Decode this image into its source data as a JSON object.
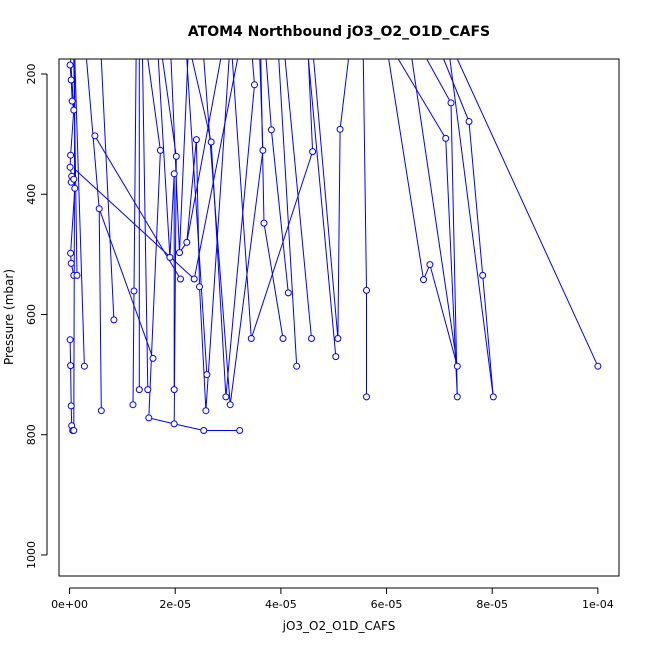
{
  "chart_data": {
    "type": "line",
    "title": "ATOM4 Northbound jO3_O2_O1D_CAFS",
    "xlabel": "jO3_O2_O1D_CAFS",
    "ylabel": "Pressure (mbar)",
    "xlim": [
      -2e-06,
      0.000104
    ],
    "ylim": [
      1035,
      175
    ],
    "y_reversed": true,
    "grid": false,
    "color": "#0000ff",
    "marker": "open-circle",
    "x_ticks": [
      0,
      2e-05,
      4e-05,
      6e-05,
      8e-05,
      0.0001
    ],
    "x_tick_labels": [
      "0e+00",
      "2e-05",
      "4e-05",
      "6e-05",
      "8e-05",
      "1e-04"
    ],
    "y_ticks": [
      200,
      400,
      600,
      800,
      1000
    ],
    "y_tick_labels": [
      "200",
      "400",
      "600",
      "800",
      "1000"
    ],
    "points": [
      [
        1e-07,
        185
      ],
      [
        3e-07,
        210
      ],
      [
        5e-07,
        245
      ],
      [
        8e-07,
        260
      ],
      [
        2e-07,
        335
      ],
      [
        1e-07,
        355
      ],
      [
        4e-07,
        370
      ],
      [
        3e-07,
        380
      ],
      [
        8e-07,
        375
      ],
      [
        1e-06,
        390
      ],
      [
        2e-07,
        498
      ],
      [
        3e-07,
        515
      ],
      [
        8e-07,
        535
      ],
      [
        1e-07,
        642
      ],
      [
        2e-07,
        685
      ],
      [
        3e-07,
        752
      ],
      [
        4e-07,
        785
      ],
      [
        6e-07,
        793
      ],
      [
        8e-07,
        793
      ],
      [
        1.4e-06,
        535
      ],
      [
        2.8e-06,
        686
      ],
      [
        4.8e-06,
        303
      ],
      [
        5.6e-06,
        424
      ],
      [
        6e-06,
        760
      ],
      [
        8.4e-06,
        609
      ],
      [
        1.22e-05,
        561
      ],
      [
        1.2e-05,
        750
      ],
      [
        1.32e-05,
        725
      ],
      [
        1.48e-05,
        725
      ],
      [
        1.5e-05,
        772
      ],
      [
        1.58e-05,
        673
      ],
      [
        1.72e-05,
        327
      ],
      [
        1.9e-05,
        505
      ],
      [
        1.98e-05,
        366
      ],
      [
        2.02e-05,
        337
      ],
      [
        1.98e-05,
        725
      ],
      [
        1.98e-05,
        782
      ],
      [
        2.08e-05,
        497
      ],
      [
        2.1e-05,
        541
      ],
      [
        2.22e-05,
        480
      ],
      [
        2.36e-05,
        541
      ],
      [
        2.4e-05,
        309
      ],
      [
        2.46e-05,
        554
      ],
      [
        2.54e-05,
        793
      ],
      [
        2.58e-05,
        760
      ],
      [
        2.6e-05,
        700
      ],
      [
        2.68e-05,
        313
      ],
      [
        2.96e-05,
        737
      ],
      [
        3.04e-05,
        750
      ],
      [
        3.22e-05,
        793
      ],
      [
        3.44e-05,
        640
      ],
      [
        3.5e-05,
        218
      ],
      [
        3.66e-05,
        327
      ],
      [
        3.68e-05,
        448
      ],
      [
        3.82e-05,
        293
      ],
      [
        4.04e-05,
        640
      ],
      [
        4.14e-05,
        564
      ],
      [
        4.3e-05,
        686
      ],
      [
        4.58e-05,
        640
      ],
      [
        4.6e-05,
        329
      ],
      [
        5.04e-05,
        670
      ],
      [
        5.08e-05,
        640
      ],
      [
        5.12e-05,
        292
      ],
      [
        5.62e-05,
        560
      ],
      [
        5.62e-05,
        737
      ],
      [
        6.7e-05,
        542
      ],
      [
        6.82e-05,
        517
      ],
      [
        7.12e-05,
        307
      ],
      [
        7.22e-05,
        248
      ],
      [
        7.34e-05,
        686
      ],
      [
        7.34e-05,
        737
      ],
      [
        7.56e-05,
        279
      ],
      [
        7.82e-05,
        535
      ],
      [
        8.02e-05,
        737
      ],
      [
        0.0001,
        686
      ]
    ],
    "series_segments": [
      [
        [
          1e-07,
          185
        ],
        [
          3e-07,
          210
        ],
        [
          5e-07,
          245
        ],
        [
          8e-07,
          260
        ],
        [
          2e-07,
          335
        ],
        [
          1e-07,
          355
        ],
        [
          4e-07,
          370
        ],
        [
          3e-07,
          380
        ]
      ],
      [
        [
          8e-07,
          375
        ],
        [
          1e-06,
          390
        ],
        [
          2e-07,
          498
        ],
        [
          3e-07,
          515
        ],
        [
          8e-07,
          535
        ]
      ],
      [
        [
          1e-07,
          642
        ],
        [
          2e-07,
          685
        ],
        [
          3e-07,
          752
        ],
        [
          4e-07,
          785
        ],
        [
          6e-07,
          793
        ],
        [
          8e-07,
          793
        ]
      ],
      [
        [
          8e-07,
          175
        ],
        [
          1.4e-06,
          535
        ]
      ],
      [
        [
          1e-06,
          175
        ],
        [
          2.8e-06,
          686
        ]
      ],
      [
        [
          1e-06,
          175
        ],
        [
          8e-07,
          793
        ]
      ],
      [
        [
          2e-07,
          175
        ],
        [
          8e-07,
          260
        ]
      ],
      [
        [
          4.8e-06,
          303
        ],
        [
          2.1e-05,
          541
        ]
      ],
      [
        [
          3.2e-06,
          175
        ],
        [
          5.6e-06,
          424
        ],
        [
          6e-06,
          760
        ]
      ],
      [
        [
          6e-06,
          175
        ],
        [
          8.4e-06,
          609
        ],
        [
          8.4e-06,
          609
        ]
      ],
      [
        [
          5.6e-06,
          424
        ],
        [
          1.58e-05,
          673
        ]
      ],
      [
        [
          1.2e-06,
          360
        ],
        [
          2.36e-05,
          541
        ]
      ],
      [
        [
          1.26e-05,
          175
        ],
        [
          1.22e-05,
          561
        ],
        [
          1.2e-05,
          750
        ]
      ],
      [
        [
          1.32e-05,
          175
        ],
        [
          1.32e-05,
          725
        ]
      ],
      [
        [
          1.38e-05,
          175
        ],
        [
          1.48e-05,
          725
        ]
      ],
      [
        [
          1.48e-05,
          175
        ],
        [
          1.72e-05,
          327
        ],
        [
          1.5e-05,
          772
        ],
        [
          1.98e-05,
          782
        ]
      ],
      [
        [
          1.68e-05,
          175
        ],
        [
          1.9e-05,
          505
        ],
        [
          1.98e-05,
          366
        ],
        [
          1.98e-05,
          725
        ]
      ],
      [
        [
          1.76e-05,
          175
        ],
        [
          2.02e-05,
          337
        ],
        [
          1.98e-05,
          782
        ]
      ],
      [
        [
          1.92e-05,
          175
        ],
        [
          2.08e-05,
          497
        ],
        [
          2.22e-05,
          480
        ],
        [
          2.4e-05,
          309
        ],
        [
          2.46e-05,
          554
        ]
      ],
      [
        [
          2.22e-05,
          175
        ],
        [
          2.6e-05,
          700
        ]
      ],
      [
        [
          2.32e-05,
          175
        ],
        [
          2.68e-05,
          313
        ],
        [
          2.96e-05,
          737
        ]
      ],
      [
        [
          2.54e-05,
          175
        ],
        [
          3.04e-05,
          750
        ]
      ],
      [
        [
          1.98e-05,
          782
        ],
        [
          2.54e-05,
          793
        ],
        [
          3.22e-05,
          793
        ]
      ],
      [
        [
          2.58e-05,
          760
        ],
        [
          2.46e-05,
          554
        ]
      ],
      [
        [
          3.02e-05,
          175
        ],
        [
          2.58e-05,
          760
        ]
      ],
      [
        [
          3.08e-05,
          175
        ],
        [
          3.44e-05,
          640
        ]
      ],
      [
        [
          3.46e-05,
          175
        ],
        [
          3.5e-05,
          218
        ],
        [
          2.96e-05,
          737
        ]
      ],
      [
        [
          3.6e-05,
          175
        ],
        [
          3.66e-05,
          327
        ],
        [
          3.04e-05,
          750
        ]
      ],
      [
        [
          3.62e-05,
          175
        ],
        [
          3.68e-05,
          448
        ],
        [
          4.04e-05,
          640
        ]
      ],
      [
        [
          3.72e-05,
          175
        ],
        [
          3.82e-05,
          293
        ],
        [
          4.14e-05,
          564
        ]
      ],
      [
        [
          3.96e-05,
          175
        ],
        [
          4.3e-05,
          686
        ]
      ],
      [
        [
          4.08e-05,
          175
        ],
        [
          4.58e-05,
          640
        ]
      ],
      [
        [
          4.6e-05,
          329
        ],
        [
          3.44e-05,
          640
        ]
      ],
      [
        [
          4.52e-05,
          175
        ],
        [
          4.6e-05,
          329
        ]
      ],
      [
        [
          4.52e-05,
          175
        ],
        [
          5.04e-05,
          670
        ]
      ],
      [
        [
          4.62e-05,
          175
        ],
        [
          5.08e-05,
          640
        ]
      ],
      [
        [
          5.28e-05,
          175
        ],
        [
          5.12e-05,
          292
        ],
        [
          5.08e-05,
          640
        ]
      ],
      [
        [
          5.56e-05,
          175
        ],
        [
          5.62e-05,
          560
        ],
        [
          5.62e-05,
          737
        ]
      ],
      [
        [
          6.04e-05,
          175
        ],
        [
          6.7e-05,
          542
        ],
        [
          6.82e-05,
          517
        ],
        [
          7.34e-05,
          686
        ]
      ],
      [
        [
          6.22e-05,
          175
        ],
        [
          7.12e-05,
          307
        ],
        [
          7.34e-05,
          737
        ]
      ],
      [
        [
          6.48e-05,
          175
        ],
        [
          7.34e-05,
          686
        ]
      ],
      [
        [
          6.76e-05,
          175
        ],
        [
          7.22e-05,
          248
        ],
        [
          7.34e-05,
          737
        ]
      ],
      [
        [
          7.08e-05,
          175
        ],
        [
          7.56e-05,
          279
        ],
        [
          7.82e-05,
          535
        ],
        [
          8.02e-05,
          737
        ]
      ],
      [
        [
          7.2e-05,
          175
        ],
        [
          8.02e-05,
          737
        ]
      ],
      [
        [
          7.34e-05,
          175
        ],
        [
          0.0001,
          686
        ]
      ],
      [
        [
          3.18e-05,
          175
        ],
        [
          2.36e-05,
          541
        ]
      ],
      [
        [
          2.24e-05,
          175
        ],
        [
          2.08e-05,
          497
        ]
      ],
      [
        [
          2.86e-05,
          175
        ],
        [
          2.22e-05,
          480
        ]
      ]
    ]
  }
}
